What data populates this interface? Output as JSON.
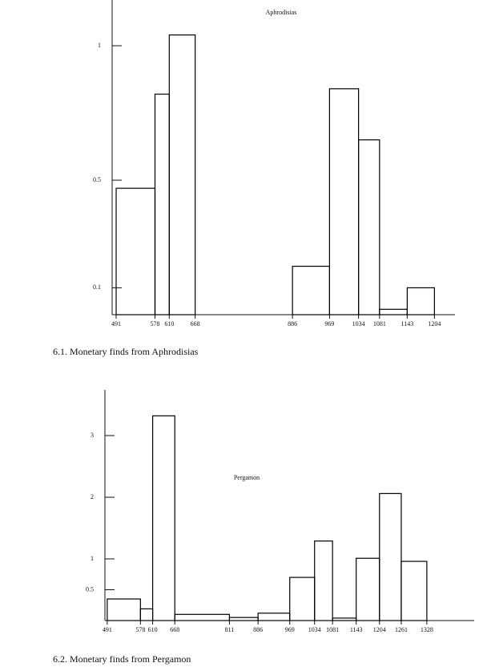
{
  "chart_data": [
    {
      "type": "histogram",
      "title": "Aphrodisias",
      "caption": "6.1. Monetary finds from Aphrodisias",
      "bins": [
        491,
        578,
        610,
        668,
        886,
        969,
        1034,
        1081,
        1143,
        1204
      ],
      "values": [
        0.47,
        0.82,
        1.04,
        0,
        0.18,
        0.84,
        0.65,
        0.02,
        0.1
      ],
      "color": "#000000",
      "xlim": [
        482,
        1250
      ],
      "xticks": [
        491,
        578,
        610,
        668,
        886,
        969,
        1034,
        1081,
        1143,
        1204
      ],
      "ylim": [
        0,
        1.17
      ],
      "yticks": [
        0.1,
        0.5,
        1
      ]
    },
    {
      "type": "histogram",
      "title": "Pergamon",
      "caption": "6.2. Monetary finds from Pergamon",
      "bins": [
        491,
        578,
        610,
        668,
        811,
        886,
        969,
        1034,
        1081,
        1143,
        1204,
        1261,
        1328
      ],
      "values": [
        0.35,
        0.19,
        3.32,
        0.1,
        0.05,
        0.12,
        0.7,
        1.29,
        0.04,
        1.01,
        2.06,
        0.96
      ],
      "color": "#000000",
      "xlim": [
        485,
        1452
      ],
      "xticks": [
        491,
        578,
        610,
        668,
        811,
        886,
        969,
        1034,
        1081,
        1143,
        1204,
        1261,
        1328
      ],
      "ylim": [
        0,
        3.74
      ],
      "yticks": [
        0.5,
        1,
        2,
        3
      ]
    }
  ]
}
